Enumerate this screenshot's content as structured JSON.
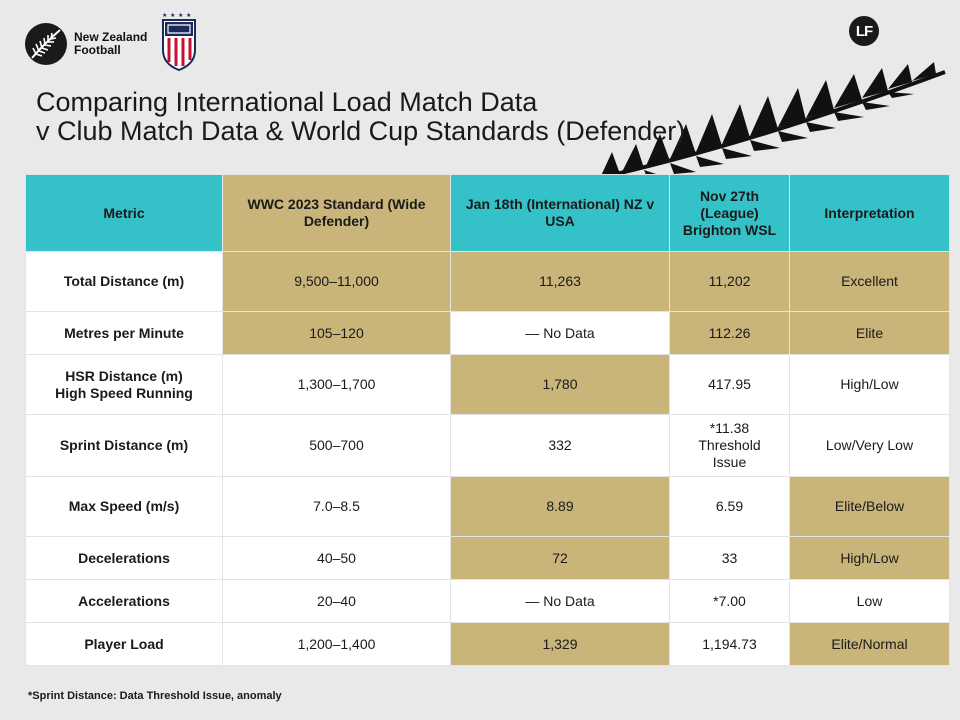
{
  "brand": {
    "nz_logo_text": [
      "New Zealand",
      "Football"
    ],
    "lf_logo_text": "LF"
  },
  "title": {
    "line1": "Comparing International Load Match Data",
    "line2": "v Club Match Data & World Cup Standards (Defender)"
  },
  "table": {
    "headers": [
      "Metric",
      "WWC 2023 Standard (Wide Defender)",
      "Jan 18th (International) NZ v USA",
      "Nov 27th (League) Brighton WSL",
      "Interpretation"
    ],
    "rows": [
      {
        "metric": "Total Distance (m)",
        "wwc": "9,500–11,000",
        "intl": "11,263",
        "league": "11,202",
        "interp": "Excellent"
      },
      {
        "metric": "Metres per Minute",
        "wwc": "105–120",
        "intl": "— No Data",
        "league": "112.26",
        "interp": "Elite"
      },
      {
        "metric": "HSR Distance (m) High Speed Running",
        "wwc": "1,300–1,700",
        "intl": "1,780",
        "league": "417.95",
        "interp": "High/Low"
      },
      {
        "metric": "Sprint Distance (m)",
        "wwc": "500–700",
        "intl": "332",
        "league": "*11.38 Threshold Issue",
        "interp": "Low/Very Low"
      },
      {
        "metric": "Max Speed (m/s)",
        "wwc": "7.0–8.5",
        "intl": "8.89",
        "league": "6.59",
        "interp": "Elite/Below"
      },
      {
        "metric": "Decelerations",
        "wwc": "40–50",
        "intl": "72",
        "league": "33",
        "interp": "High/Low"
      },
      {
        "metric": "Accelerations",
        "wwc": "20–40",
        "intl": "— No Data",
        "league": "*7.00",
        "interp": "Low"
      },
      {
        "metric": "Player Load",
        "wwc": "1,200–1,400",
        "intl": "1,329",
        "league": "1,194.73",
        "interp": "Elite/Normal"
      }
    ]
  },
  "footnote": "*Sprint Distance: Data Threshold Issue, anomaly",
  "colors": {
    "teal_header": "#35c1c8",
    "gold_highlight": "#c9b47a",
    "background": "#e9e9e9"
  }
}
